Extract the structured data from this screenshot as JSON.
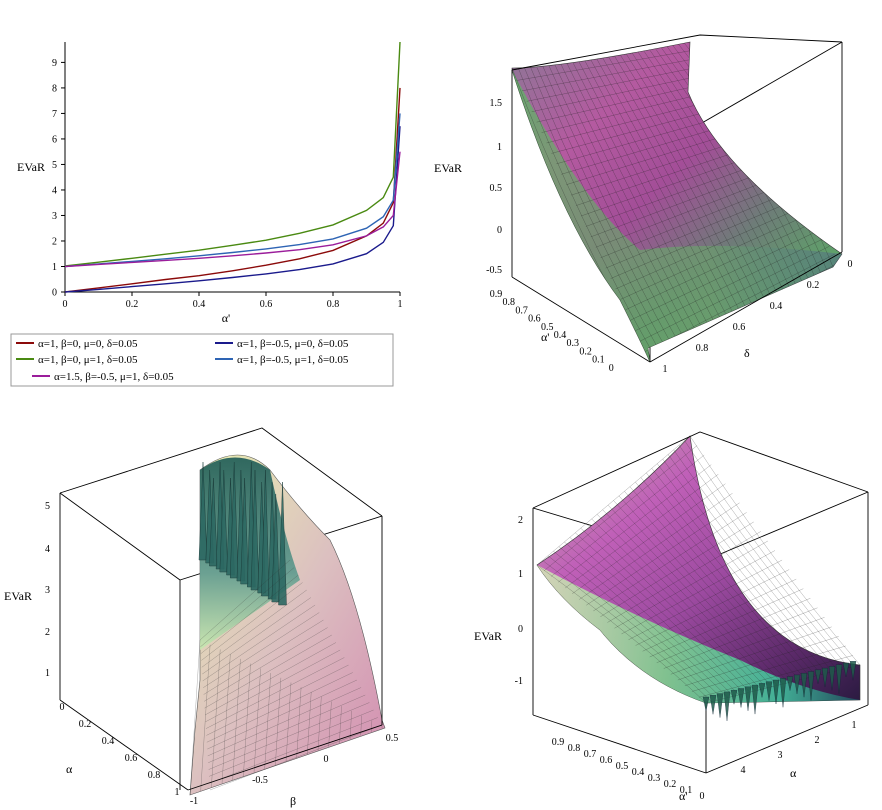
{
  "chart_data": [
    {
      "type": "line",
      "ylabel": "EVaR",
      "xlabel": "α'",
      "xlim": [
        0,
        1
      ],
      "ylim": [
        0,
        9.8
      ],
      "x_ticks": [
        "0",
        "0.2",
        "0.4",
        "0.6",
        "0.8",
        "1"
      ],
      "y_ticks": [
        "0",
        "1",
        "2",
        "3",
        "4",
        "5",
        "6",
        "7",
        "8",
        "9"
      ],
      "legend_position": "bottom",
      "series": [
        {
          "name": "α=1, β=0, μ=0, δ=0.05",
          "color": "#8b0a0a",
          "x": [
            0,
            0.1,
            0.2,
            0.3,
            0.4,
            0.5,
            0.6,
            0.7,
            0.8,
            0.9,
            0.95,
            0.98,
            1.0
          ],
          "y": [
            0,
            0.16,
            0.32,
            0.49,
            0.64,
            0.83,
            1.05,
            1.3,
            1.63,
            2.2,
            2.7,
            3.5,
            8.0
          ]
        },
        {
          "name": "α=1, β=-0.5, μ=0, δ=0.05",
          "color": "#1a1a8c",
          "x": [
            0,
            0.1,
            0.2,
            0.3,
            0.4,
            0.5,
            0.6,
            0.7,
            0.8,
            0.9,
            0.95,
            0.98,
            1.0
          ],
          "y": [
            0,
            0.1,
            0.21,
            0.32,
            0.44,
            0.57,
            0.71,
            0.88,
            1.1,
            1.5,
            1.95,
            2.6,
            6.5
          ]
        },
        {
          "name": "α=1, β=0, μ=1, δ=0.05",
          "color": "#4a8a12",
          "x": [
            0,
            0.1,
            0.2,
            0.3,
            0.4,
            0.5,
            0.6,
            0.7,
            0.8,
            0.9,
            0.95,
            0.98,
            1.0
          ],
          "y": [
            1.02,
            1.17,
            1.32,
            1.48,
            1.64,
            1.83,
            2.03,
            2.3,
            2.63,
            3.2,
            3.7,
            4.5,
            9.8
          ]
        },
        {
          "name": "α=1, β=-0.5, μ=1, δ=0.05",
          "color": "#2e64b4",
          "x": [
            0,
            0.1,
            0.2,
            0.3,
            0.4,
            0.5,
            0.6,
            0.7,
            0.8,
            0.9,
            0.95,
            0.98,
            1.0
          ],
          "y": [
            1.0,
            1.1,
            1.2,
            1.3,
            1.42,
            1.55,
            1.69,
            1.86,
            2.08,
            2.5,
            2.95,
            3.6,
            7.0
          ]
        },
        {
          "name": "α=1.5, β=-0.5, μ=1, δ=0.05",
          "color": "#9b1d9b",
          "x": [
            0,
            0.1,
            0.2,
            0.3,
            0.4,
            0.5,
            0.6,
            0.7,
            0.8,
            0.9,
            0.95,
            0.98,
            1.0
          ],
          "y": [
            1.0,
            1.08,
            1.16,
            1.24,
            1.32,
            1.42,
            1.53,
            1.66,
            1.85,
            2.2,
            2.55,
            3.0,
            5.5
          ]
        }
      ]
    },
    {
      "type": "surface",
      "zlabel": "EVaR",
      "axes": [
        {
          "label": "α'",
          "ticks": [
            "0.9",
            "0.8",
            "0.7",
            "0.6",
            "0.5",
            "0.4",
            "0.3",
            "0.2",
            "0.1",
            "0"
          ]
        },
        {
          "label": "δ",
          "ticks": [
            "1",
            "0.8",
            "0.6",
            "0.4",
            "0.2",
            "0"
          ]
        }
      ],
      "z_ticks": [
        "1.5",
        "1",
        "0.5",
        "0",
        "-0.5"
      ],
      "zlim": [
        -0.6,
        1.9
      ]
    },
    {
      "type": "surface",
      "zlabel": "EVaR",
      "axes": [
        {
          "label": "α",
          "ticks": [
            "0",
            "0.2",
            "0.4",
            "0.6",
            "0.8",
            "1"
          ]
        },
        {
          "label": "β",
          "ticks": [
            "-1",
            "-0.5",
            "0",
            "0.5"
          ]
        }
      ],
      "z_ticks": [
        "5",
        "4",
        "3",
        "2",
        "1"
      ],
      "zlim": [
        0,
        5.3
      ]
    },
    {
      "type": "surface",
      "zlabel": "EVaR",
      "axes": [
        {
          "label": "α'",
          "ticks": [
            "0.9",
            "0.8",
            "0.7",
            "0.6",
            "0.5",
            "0.4",
            "0.3",
            "0.2",
            "0.1",
            "0"
          ]
        },
        {
          "label": "α",
          "ticks": [
            "4",
            "3",
            "2",
            "1"
          ]
        }
      ],
      "z_ticks": [
        "2",
        "1",
        "0",
        "-1"
      ],
      "zlim": [
        -1.4,
        2.4
      ]
    }
  ]
}
